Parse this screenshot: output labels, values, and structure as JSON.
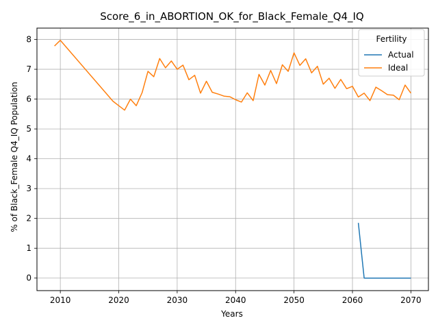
{
  "chart_data": {
    "type": "line",
    "title": "Score_6_in_ABORTION_OK_for_Black_Female_Q4_IQ",
    "xlabel": "Years",
    "ylabel": "% of Black_Female Q4_IQ Population",
    "xlim": [
      2006,
      2073
    ],
    "ylim": [
      -0.42,
      8.38
    ],
    "x_ticks": [
      2010,
      2020,
      2030,
      2040,
      2050,
      2060,
      2070
    ],
    "y_ticks": [
      0,
      1,
      2,
      3,
      4,
      5,
      6,
      7,
      8
    ],
    "grid": true,
    "legend": {
      "title": "Fertility",
      "placement": "top-right"
    },
    "series": [
      {
        "name": "Actual",
        "color": "#1f77b4",
        "x": [
          2061,
          2062,
          2063,
          2064,
          2065,
          2066,
          2067,
          2068,
          2069,
          2070
        ],
        "y": [
          1.85,
          0.0,
          0.0,
          0.0,
          0.0,
          0.0,
          0.0,
          0.0,
          0.0,
          0.0
        ]
      },
      {
        "name": "Ideal",
        "color": "#ff7f0e",
        "x": [
          2009,
          2010,
          2019,
          2020,
          2021,
          2022,
          2023,
          2024,
          2025,
          2026,
          2027,
          2028,
          2029,
          2030,
          2031,
          2032,
          2033,
          2034,
          2035,
          2036,
          2037,
          2038,
          2039,
          2040,
          2041,
          2042,
          2043,
          2044,
          2045,
          2046,
          2047,
          2048,
          2049,
          2050,
          2051,
          2052,
          2053,
          2054,
          2055,
          2056,
          2057,
          2058,
          2059,
          2060,
          2061,
          2062,
          2063,
          2064,
          2065,
          2066,
          2067,
          2068,
          2069,
          2070
        ],
        "y": [
          7.78,
          7.97,
          5.93,
          5.78,
          5.63,
          6.0,
          5.78,
          6.22,
          6.93,
          6.75,
          7.36,
          7.05,
          7.28,
          7.0,
          7.14,
          6.65,
          6.8,
          6.2,
          6.6,
          6.23,
          6.17,
          6.1,
          6.08,
          5.98,
          5.9,
          6.21,
          5.95,
          6.83,
          6.47,
          6.96,
          6.52,
          7.15,
          6.93,
          7.55,
          7.13,
          7.35,
          6.88,
          7.1,
          6.5,
          6.7,
          6.36,
          6.66,
          6.35,
          6.43,
          6.07,
          6.2,
          5.95,
          6.4,
          6.28,
          6.15,
          6.13,
          5.98,
          6.47,
          6.2
        ]
      }
    ]
  }
}
